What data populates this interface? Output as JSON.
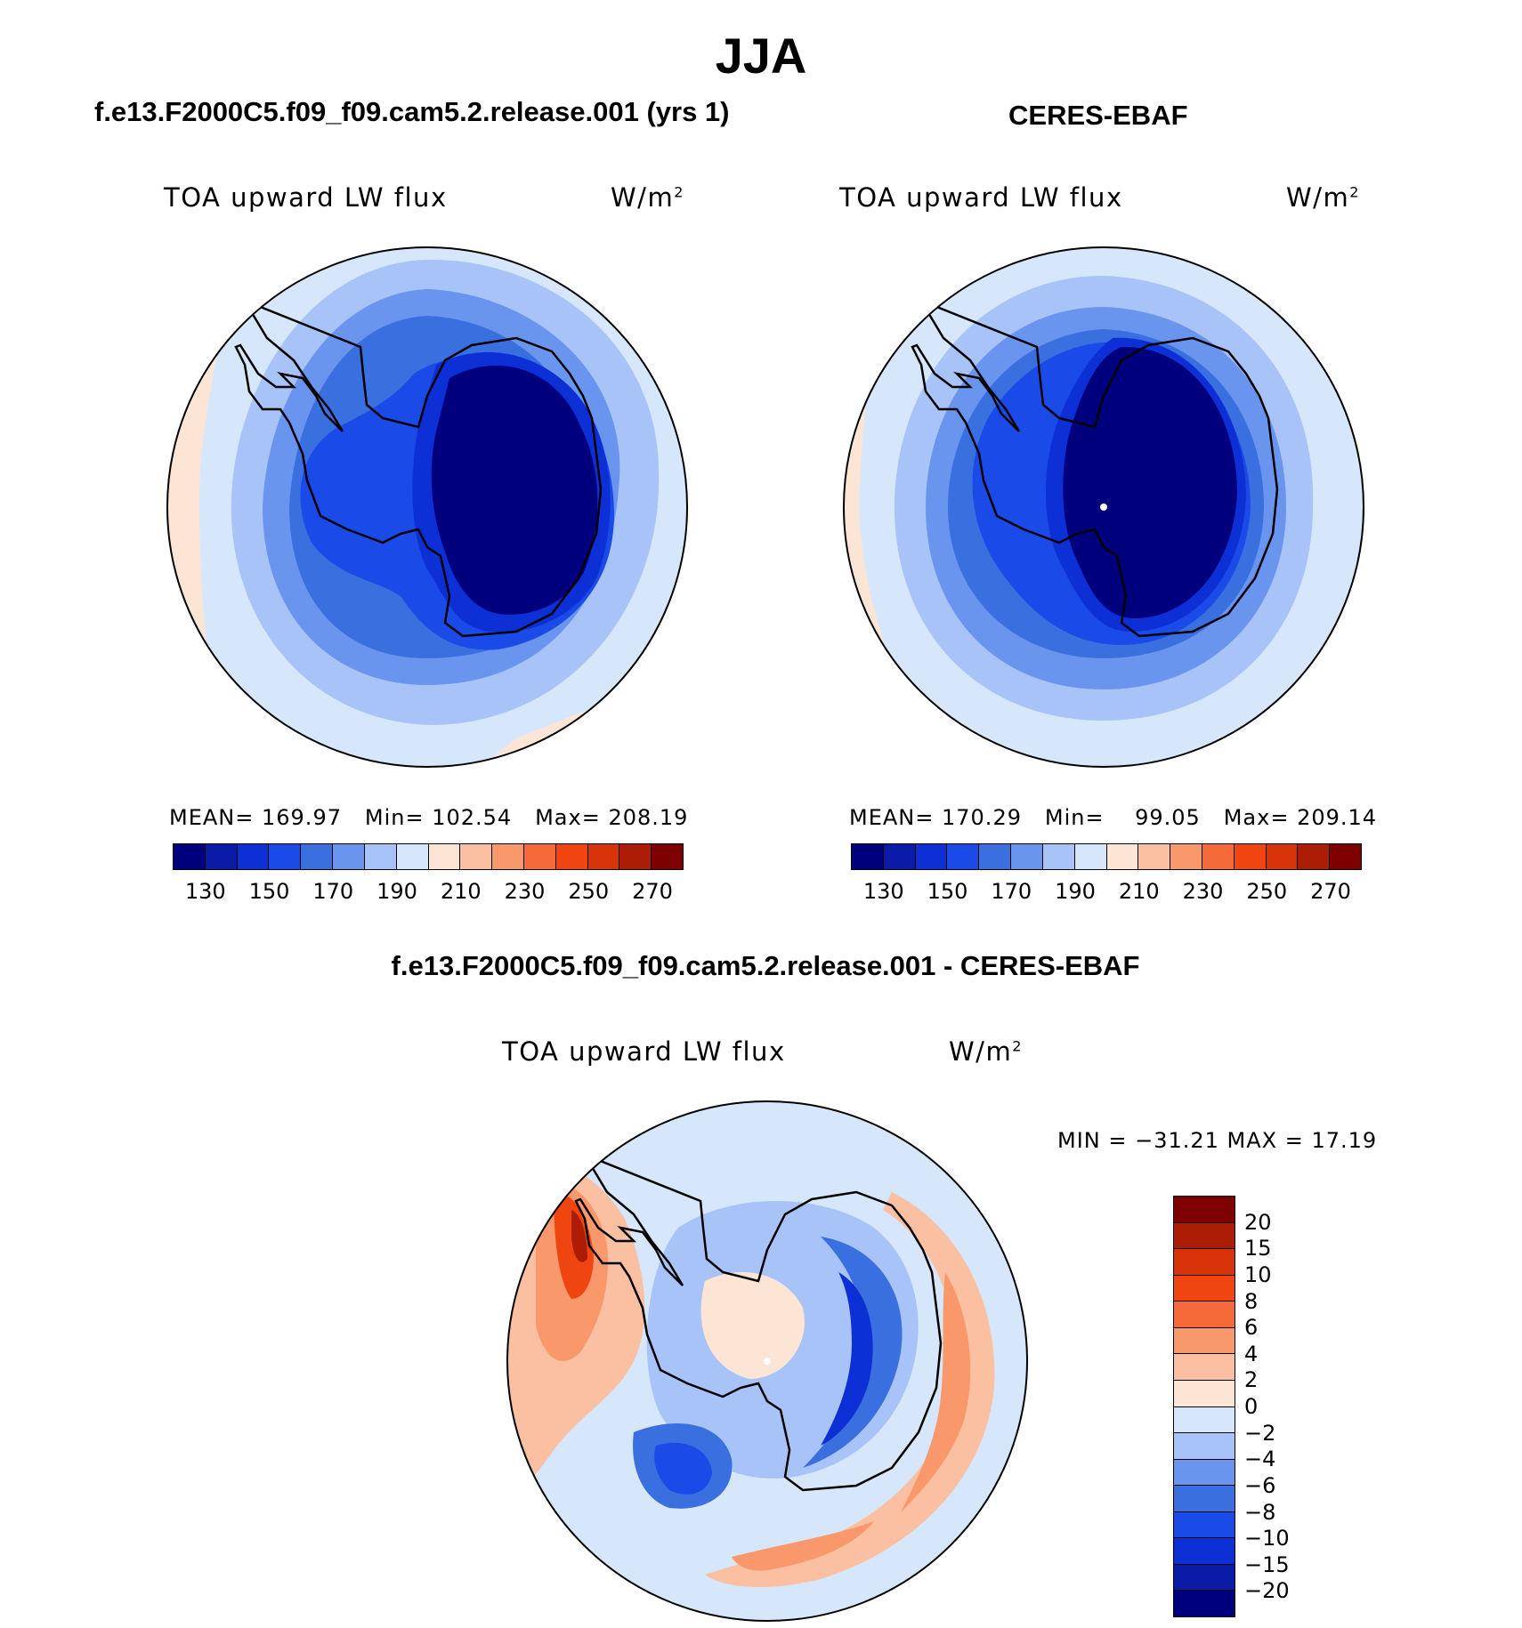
{
  "figure": {
    "season": "JJA",
    "bottom_title": "f.e13.F2000C5.f09_f09.cam5.2.release.001 - CERES-EBAF"
  },
  "panels": [
    {
      "case_title": "f.e13.F2000C5.f09_f09.cam5.2.release.001 (yrs 1)",
      "variable": "TOA upward LW flux",
      "units_base": "W/m",
      "units_exp": "2",
      "stats": {
        "mean_label": "MEAN=",
        "mean": "169.97",
        "min_label": "Min=",
        "min": "102.54",
        "max_label": "Max=",
        "max": "208.19"
      }
    },
    {
      "case_title": "CERES-EBAF",
      "variable": "TOA upward LW flux",
      "units_base": "W/m",
      "units_exp": "2",
      "stats": {
        "mean_label": "MEAN=",
        "mean": "170.29",
        "min_label": "Min=",
        "min": "99.05",
        "max_label": "Max=",
        "max": "209.14"
      }
    }
  ],
  "diff_panel": {
    "variable": "TOA upward LW flux",
    "units_base": "W/m",
    "units_exp": "2",
    "minmax_text": "MIN = −31.21  MAX =   17.19"
  },
  "abs_colorbar": {
    "colors": [
      "#00007f",
      "#0a1ba8",
      "#0d2fd6",
      "#1a4ae8",
      "#3a6fe0",
      "#6a95ee",
      "#a7c3f8",
      "#d6e7fb",
      "#fde5d6",
      "#fbc0a2",
      "#f8986b",
      "#f66a3a",
      "#f04511",
      "#d63309",
      "#ad1d05",
      "#7f0000"
    ],
    "tick_labels": [
      "130",
      "150",
      "170",
      "190",
      "210",
      "230",
      "250",
      "270"
    ]
  },
  "diff_colorbar": {
    "colors": [
      "#7f0000",
      "#ad1d05",
      "#d63309",
      "#f04511",
      "#f66a3a",
      "#f8986b",
      "#fbc0a2",
      "#fde5d6",
      "#d6e7fb",
      "#a7c3f8",
      "#6a95ee",
      "#3a6fe0",
      "#1a4ae8",
      "#0d2fd6",
      "#0a1ba8",
      "#00007f"
    ],
    "tick_labels": [
      "20",
      "15",
      "10",
      "8",
      "6",
      "4",
      "2",
      "0",
      "−2",
      "−4",
      "−6",
      "−8",
      "−10",
      "−15",
      "−20"
    ]
  }
}
